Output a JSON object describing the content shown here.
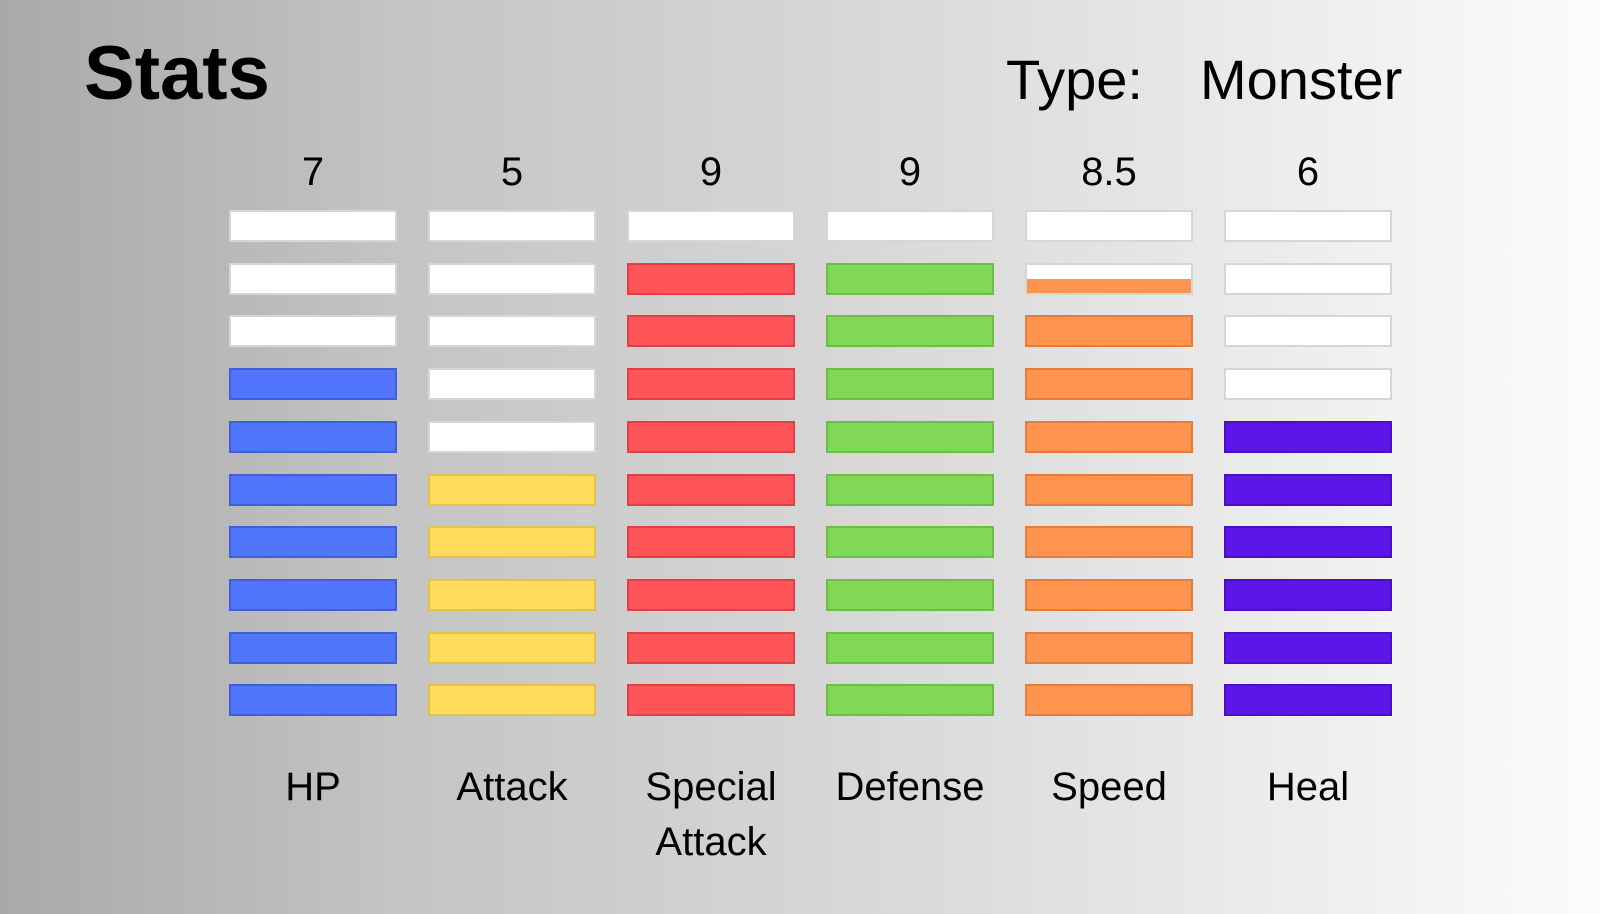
{
  "header": {
    "title": "Stats",
    "type_label": "Type:",
    "type_value": "Monster"
  },
  "stats": [
    {
      "name": "HP",
      "label": "HP",
      "display": "7",
      "value": 7,
      "max": 10,
      "color": "#5176fb",
      "border": "#3f5fd8"
    },
    {
      "name": "attack",
      "label": "Attack",
      "display": "5",
      "value": 5,
      "max": 10,
      "color": "#ffdd5c",
      "border": "#e6c24a"
    },
    {
      "name": "special-attack",
      "label": "Special Attack",
      "display": "9",
      "value": 9,
      "max": 10,
      "color": "#ff5559",
      "border": "#e23f44"
    },
    {
      "name": "defense",
      "label": "Defense",
      "display": "9",
      "value": 9,
      "max": 10,
      "color": "#80d856",
      "border": "#6bbf44"
    },
    {
      "name": "speed",
      "label": "Speed",
      "display": "8.5",
      "value": 8.5,
      "max": 10,
      "color": "#ff944f",
      "border": "#e57c3c"
    },
    {
      "name": "heal",
      "label": "Heal",
      "display": "6",
      "value": 6,
      "max": 10,
      "color": "#5d16e8",
      "border": "#4a0fc2"
    }
  ]
}
